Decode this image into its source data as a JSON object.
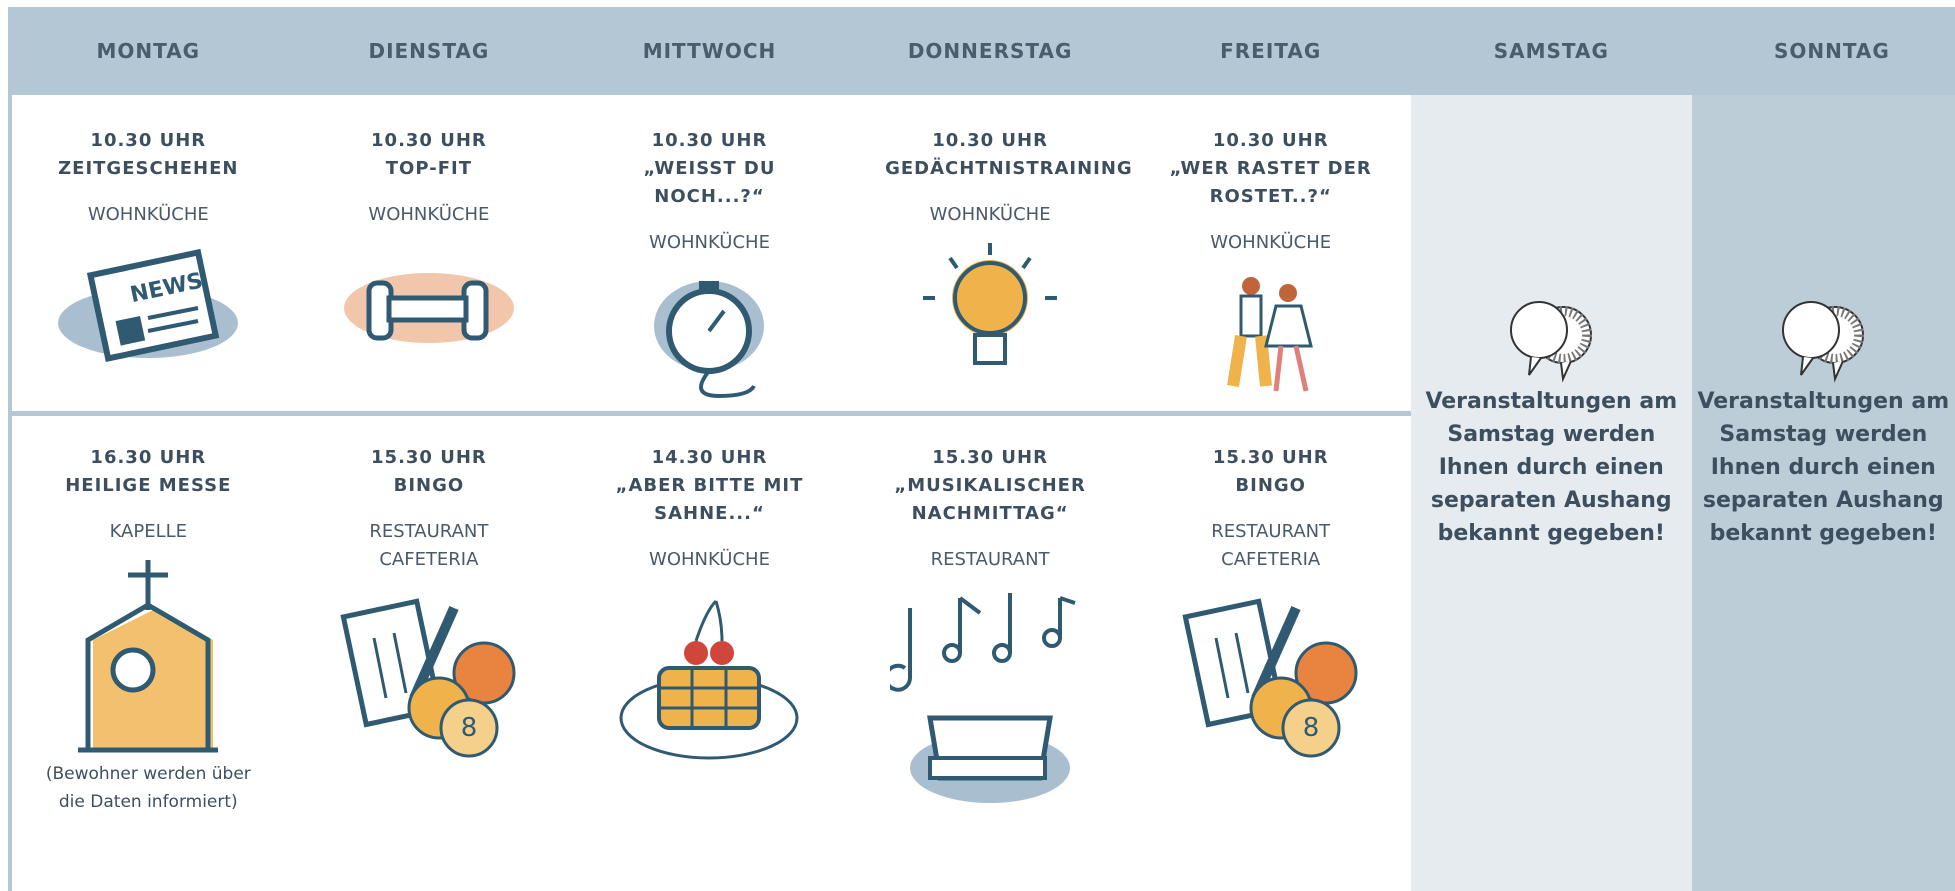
{
  "header": {
    "days": [
      "MONTAG",
      "DIENSTAG",
      "MITTWOCH",
      "DONNERSTAG",
      "FREITAG",
      "SAMSTAG",
      "SONNTAG"
    ]
  },
  "morning": [
    {
      "time": "10.30 UHR",
      "title": "ZEITGESCHEHEN",
      "location": "WOHNKÜCHE"
    },
    {
      "time": "10.30 UHR",
      "title": "TOP-FIT",
      "location": "WOHNKÜCHE"
    },
    {
      "time": "10.30 UHR",
      "title": "„WEISST DU NOCH...?“",
      "location": "WOHNKÜCHE"
    },
    {
      "time": "10.30 UHR",
      "title": "GEDÄCHTNISTRAINING",
      "location": "WOHNKÜCHE"
    },
    {
      "time": "10.30 UHR",
      "title": "„WER RASTET DER ROSTET..?“",
      "location": "WOHNKÜCHE"
    }
  ],
  "afternoon": [
    {
      "time": "16.30 UHR",
      "title": "HEILIGE MESSE",
      "location": "KAPELLE",
      "note": "(Bewohner werden über die Daten informiert)"
    },
    {
      "time": "15.30 UHR",
      "title": "BINGO",
      "location": "RESTAURANT CAFETERIA"
    },
    {
      "time": "14.30 UHR",
      "title": "„ABER BITTE MIT SAHNE...“",
      "location": "WOHNKÜCHE"
    },
    {
      "time": "15.30 UHR",
      "title": "„MUSIKALISCHER NACHMITTAG“",
      "location": "RESTAURANT"
    },
    {
      "time": "15.30 UHR",
      "title": "BINGO",
      "location": "RESTAURANT CAFETERIA"
    }
  ],
  "weekend": [
    {
      "notice": "Veranstaltungen am Samstag werden Ihnen durch einen separaten Aushang bekannt gegeben!"
    },
    {
      "notice": "Veranstaltungen am Samstag werden Ihnen durch einen separaten Aushang bekannt gegeben!"
    }
  ]
}
